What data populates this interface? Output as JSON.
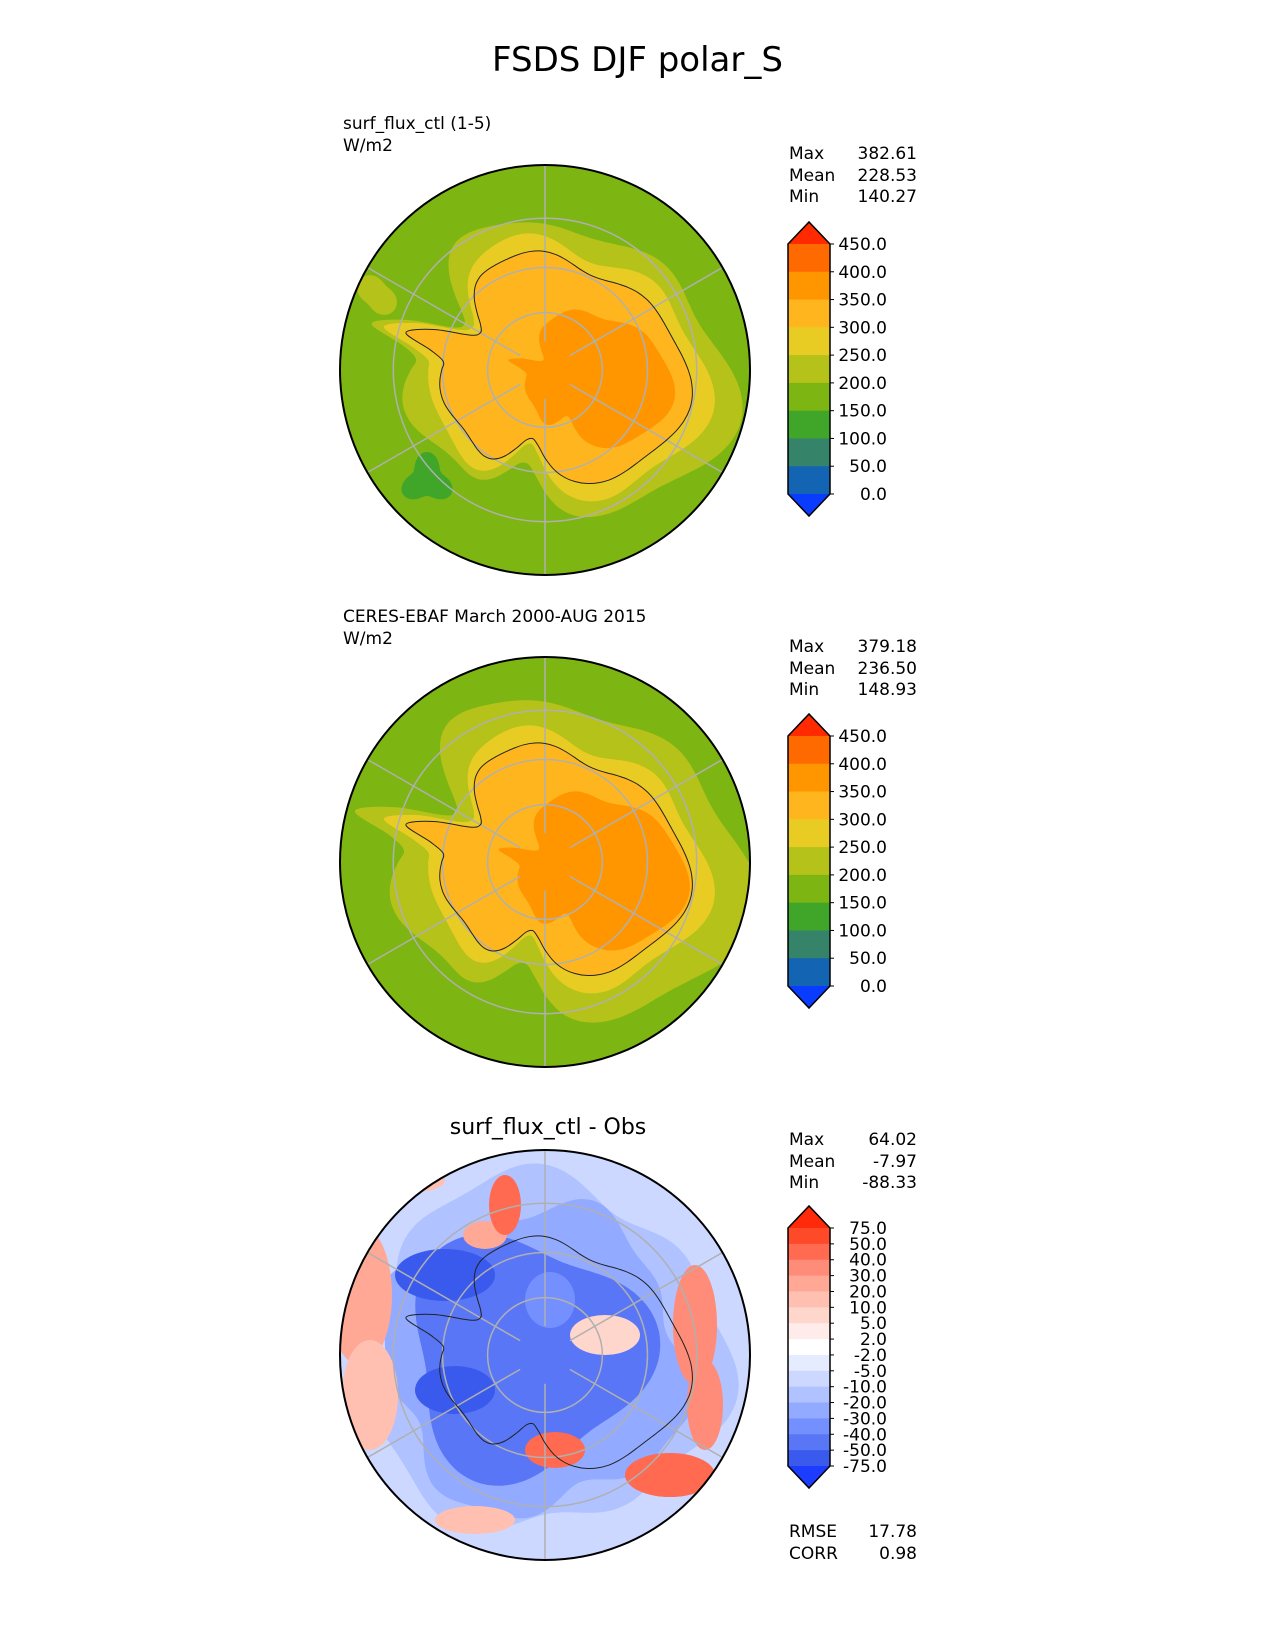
{
  "title": "FSDS DJF polar_S",
  "panels": [
    {
      "id": "model",
      "label_line1": "surf_flux_ctl (1-5)",
      "label_line2": "W/m2",
      "center_title": "",
      "stats": [
        {
          "name": "Max",
          "value": "382.61"
        },
        {
          "name": "Mean",
          "value": "228.53"
        },
        {
          "name": "Min",
          "value": "140.27"
        }
      ],
      "colorbar": {
        "levels": [
          "450.0",
          "400.0",
          "350.0",
          "300.0",
          "250.0",
          "200.0",
          "150.0",
          "100.0",
          "50.0",
          "0.0"
        ],
        "colors": [
          "#ff2a00",
          "#ff6a00",
          "#ff9600",
          "#ffb61e",
          "#e8cc24",
          "#b4c21a",
          "#7db512",
          "#3fa62a",
          "#35846a",
          "#1464b4",
          "#0a3cff"
        ]
      }
    },
    {
      "id": "obs",
      "label_line1": "CERES-EBAF March 2000-AUG 2015",
      "label_line2": "W/m2",
      "center_title": "",
      "stats": [
        {
          "name": "Max",
          "value": "379.18"
        },
        {
          "name": "Mean",
          "value": "236.50"
        },
        {
          "name": "Min",
          "value": "148.93"
        }
      ],
      "colorbar": {
        "levels": [
          "450.0",
          "400.0",
          "350.0",
          "300.0",
          "250.0",
          "200.0",
          "150.0",
          "100.0",
          "50.0",
          "0.0"
        ],
        "colors": [
          "#ff2a00",
          "#ff6a00",
          "#ff9600",
          "#ffb61e",
          "#e8cc24",
          "#b4c21a",
          "#7db512",
          "#3fa62a",
          "#35846a",
          "#1464b4",
          "#0a3cff"
        ]
      }
    },
    {
      "id": "diff",
      "label_line1": "",
      "label_line2": "",
      "center_title": "surf_flux_ctl - Obs",
      "stats": [
        {
          "name": "Max",
          "value": "64.02"
        },
        {
          "name": "Mean",
          "value": "-7.97"
        },
        {
          "name": "Min",
          "value": "-88.33"
        }
      ],
      "colorbar": {
        "levels": [
          "75.0",
          "50.0",
          "40.0",
          "30.0",
          "20.0",
          "10.0",
          "5.0",
          "2.0",
          "-2.0",
          "-5.0",
          "-10.0",
          "-20.0",
          "-30.0",
          "-40.0",
          "-50.0",
          "-75.0"
        ],
        "colors": [
          "#ff2a0a",
          "#ff4a2a",
          "#ff6a50",
          "#ff8c78",
          "#ffa896",
          "#ffc0b2",
          "#ffd6cc",
          "#ffecea",
          "#ffffff",
          "#e6ecff",
          "#ccd8ff",
          "#b0c2ff",
          "#92aaff",
          "#7490ff",
          "#5876f6",
          "#3a5aee",
          "#1c3cff"
        ]
      },
      "metrics": [
        {
          "name": "RMSE",
          "value": "17.78"
        },
        {
          "name": "CORR",
          "value": "0.98"
        }
      ]
    }
  ],
  "chart_data": [
    {
      "type": "heatmap",
      "projection": "south polar stereographic",
      "variable": "FSDS",
      "season": "DJF",
      "units": "W/m2",
      "title": "surf_flux_ctl (1-5)",
      "stats": {
        "max": 382.61,
        "mean": 228.53,
        "min": 140.27
      },
      "contour_levels": [
        0,
        50,
        100,
        150,
        200,
        250,
        300,
        350,
        400,
        450
      ],
      "pattern": {
        "antarctic_interior": 350,
        "antarctic_coast": 300,
        "sea_ice_zone": 250,
        "southern_ocean": 175
      }
    },
    {
      "type": "heatmap",
      "projection": "south polar stereographic",
      "variable": "FSDS",
      "season": "DJF",
      "units": "W/m2",
      "title": "CERES-EBAF March 2000-AUG 2015",
      "stats": {
        "max": 379.18,
        "mean": 236.5,
        "min": 148.93
      },
      "contour_levels": [
        0,
        50,
        100,
        150,
        200,
        250,
        300,
        350,
        400,
        450
      ],
      "pattern": {
        "antarctic_interior": 375,
        "antarctic_coast": 325,
        "sea_ice_zone": 275,
        "southern_ocean": 175
      }
    },
    {
      "type": "heatmap",
      "projection": "south polar stereographic",
      "title": "surf_flux_ctl - Obs",
      "units": "W/m2",
      "stats": {
        "max": 64.02,
        "mean": -7.97,
        "min": -88.33
      },
      "contour_levels": [
        -75,
        -50,
        -40,
        -30,
        -20,
        -10,
        -5,
        -2,
        2,
        5,
        10,
        20,
        30,
        40,
        50,
        75
      ],
      "metrics": {
        "rmse": 17.78,
        "corr": 0.98
      }
    }
  ]
}
